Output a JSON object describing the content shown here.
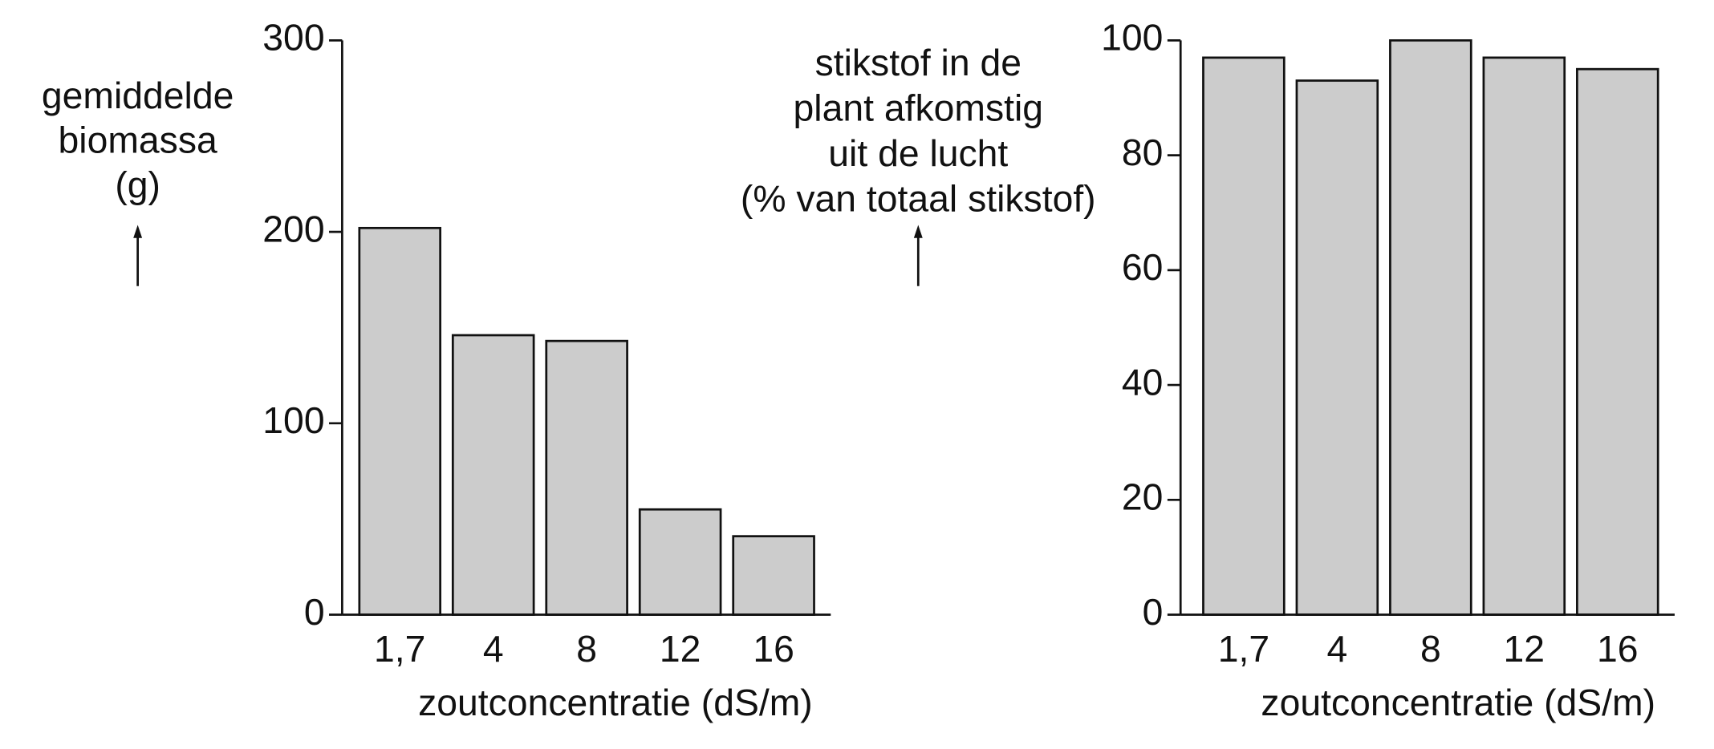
{
  "chart_data": [
    {
      "type": "bar",
      "y_label": [
        "gemiddelde",
        "biomassa",
        "(g)"
      ],
      "x_label": "zoutconcentratie (dS/m)",
      "categories": [
        "1,7",
        "4",
        "8",
        "12",
        "16"
      ],
      "values": [
        202,
        146,
        143,
        55,
        41
      ],
      "color": "#cccccc",
      "ylim": [
        0,
        300
      ],
      "yticks": [
        0,
        100,
        200,
        300
      ]
    },
    {
      "type": "bar",
      "y_label": [
        "stikstof in de",
        "plant afkomstig",
        "uit de lucht",
        "(% van totaal stikstof)"
      ],
      "x_label": "zoutconcentratie (dS/m)",
      "categories": [
        "1,7",
        "4",
        "8",
        "12",
        "16"
      ],
      "values": [
        97,
        93,
        100,
        97,
        95
      ],
      "color": "#cccccc",
      "ylim": [
        0,
        100
      ],
      "yticks": [
        0,
        20,
        40,
        60,
        80,
        100
      ]
    }
  ]
}
